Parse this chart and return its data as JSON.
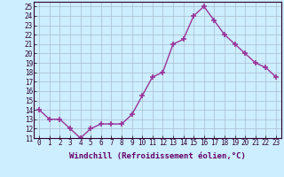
{
  "x": [
    0,
    1,
    2,
    3,
    4,
    5,
    6,
    7,
    8,
    9,
    10,
    11,
    12,
    13,
    14,
    15,
    16,
    17,
    18,
    19,
    20,
    21,
    22,
    23
  ],
  "y": [
    14,
    13,
    13,
    12,
    11,
    12,
    12.5,
    12.5,
    12.5,
    13.5,
    15.5,
    17.5,
    18,
    21,
    21.5,
    24,
    25,
    23.5,
    22,
    21,
    20,
    19,
    18.5,
    17.5
  ],
  "line_color": "#993399",
  "marker": "+",
  "bg_color": "#cceeff",
  "grid_color": "#aabbcc",
  "xlabel": "Windchill (Refroidissement éolien,°C)",
  "xlim": [
    -0.5,
    23.5
  ],
  "ylim": [
    11,
    25.5
  ],
  "yticks": [
    11,
    12,
    13,
    14,
    15,
    16,
    17,
    18,
    19,
    20,
    21,
    22,
    23,
    24,
    25
  ],
  "xticks": [
    0,
    1,
    2,
    3,
    4,
    5,
    6,
    7,
    8,
    9,
    10,
    11,
    12,
    13,
    14,
    15,
    16,
    17,
    18,
    19,
    20,
    21,
    22,
    23
  ],
  "tick_label_fontsize": 5.5,
  "xlabel_fontsize": 6.5,
  "line_width": 1.0,
  "marker_size": 5,
  "spine_color": "#8888aa"
}
